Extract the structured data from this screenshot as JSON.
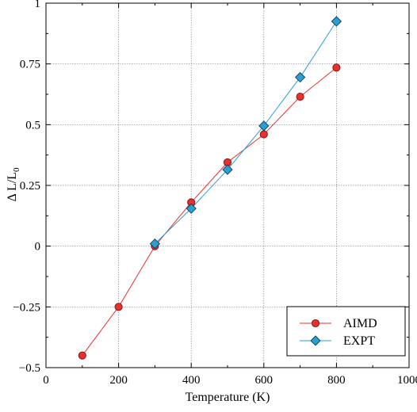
{
  "chart_data": {
    "type": "line",
    "xlabel": "Temperature (K)",
    "ylabel_main": "Δ L/L",
    "ylabel_sub": "0",
    "xlim": [
      0,
      1000
    ],
    "ylim": [
      -0.5,
      1
    ],
    "x_ticks": [
      0,
      200,
      400,
      600,
      800,
      1000
    ],
    "x_tick_labels": [
      "0",
      "200",
      "400",
      "600",
      "800",
      "1000"
    ],
    "y_ticks": [
      -0.5,
      -0.25,
      0,
      0.25,
      0.5,
      0.75,
      1
    ],
    "y_tick_labels": [
      "−0.5",
      "−0.25",
      "0",
      "0.25",
      "0.5",
      "0.75",
      "1"
    ],
    "grid": true,
    "legend_position": "bottom-right",
    "series": [
      {
        "name": "AIMD",
        "marker": "circle",
        "line_color": "#e8302c",
        "marker_fill": "#e8302c",
        "marker_stroke": "#7a1010",
        "x": [
          100,
          200,
          300,
          400,
          500,
          600,
          700,
          800
        ],
        "y": [
          -0.45,
          -0.25,
          0.0,
          0.18,
          0.345,
          0.46,
          0.615,
          0.735
        ]
      },
      {
        "name": "EXPT",
        "marker": "diamond",
        "line_color": "#2a9fd0",
        "marker_fill": "#2a9fd0",
        "marker_stroke": "#0d3f5e",
        "x": [
          300,
          400,
          500,
          600,
          700,
          800
        ],
        "y": [
          0.01,
          0.155,
          0.315,
          0.495,
          0.695,
          0.925
        ]
      }
    ]
  }
}
